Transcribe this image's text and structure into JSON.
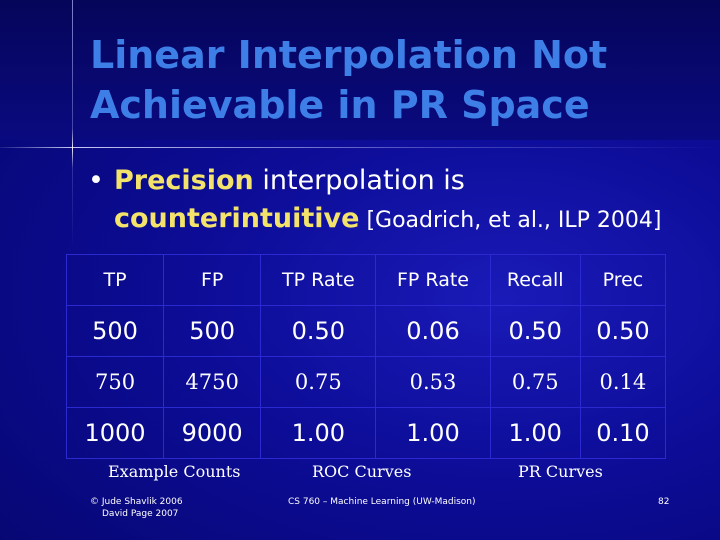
{
  "slide": {
    "title_line1": "Linear Interpolation Not",
    "title_line2": "Achievable in PR Space",
    "bullet": {
      "symbol": "•",
      "keyword": "Precision",
      "text_after_keyword": " interpolation is",
      "line2_keyword": "counterintuitive",
      "citation": " [Goadrich, et al., ILP 2004]"
    }
  },
  "table": {
    "headers": [
      "TP",
      "FP",
      "TP Rate",
      "FP Rate",
      "Recall",
      "Prec"
    ],
    "rows": [
      [
        "500",
        "500",
        "0.50",
        "0.06",
        "0.50",
        "0.50"
      ],
      [
        "750",
        "4750",
        "0.75",
        "0.53",
        "0.75",
        "0.14"
      ],
      [
        "1000",
        "9000",
        "1.00",
        "1.00",
        "1.00",
        "0.10"
      ]
    ],
    "highlight_color": "#ff2020"
  },
  "captions": {
    "example_counts": "Example Counts",
    "roc_curves": "ROC Curves",
    "pr_curves": "PR Curves"
  },
  "footer": {
    "copyright_line1": "© Jude Shavlik 2006",
    "copyright_line2": "David Page 2007",
    "course": "CS 760 – Machine Learning (UW-Madison)",
    "page_number": "82"
  },
  "colors": {
    "title": "#3d7fe6",
    "keyword": "#f3e36a",
    "background": "#0c0c96"
  }
}
